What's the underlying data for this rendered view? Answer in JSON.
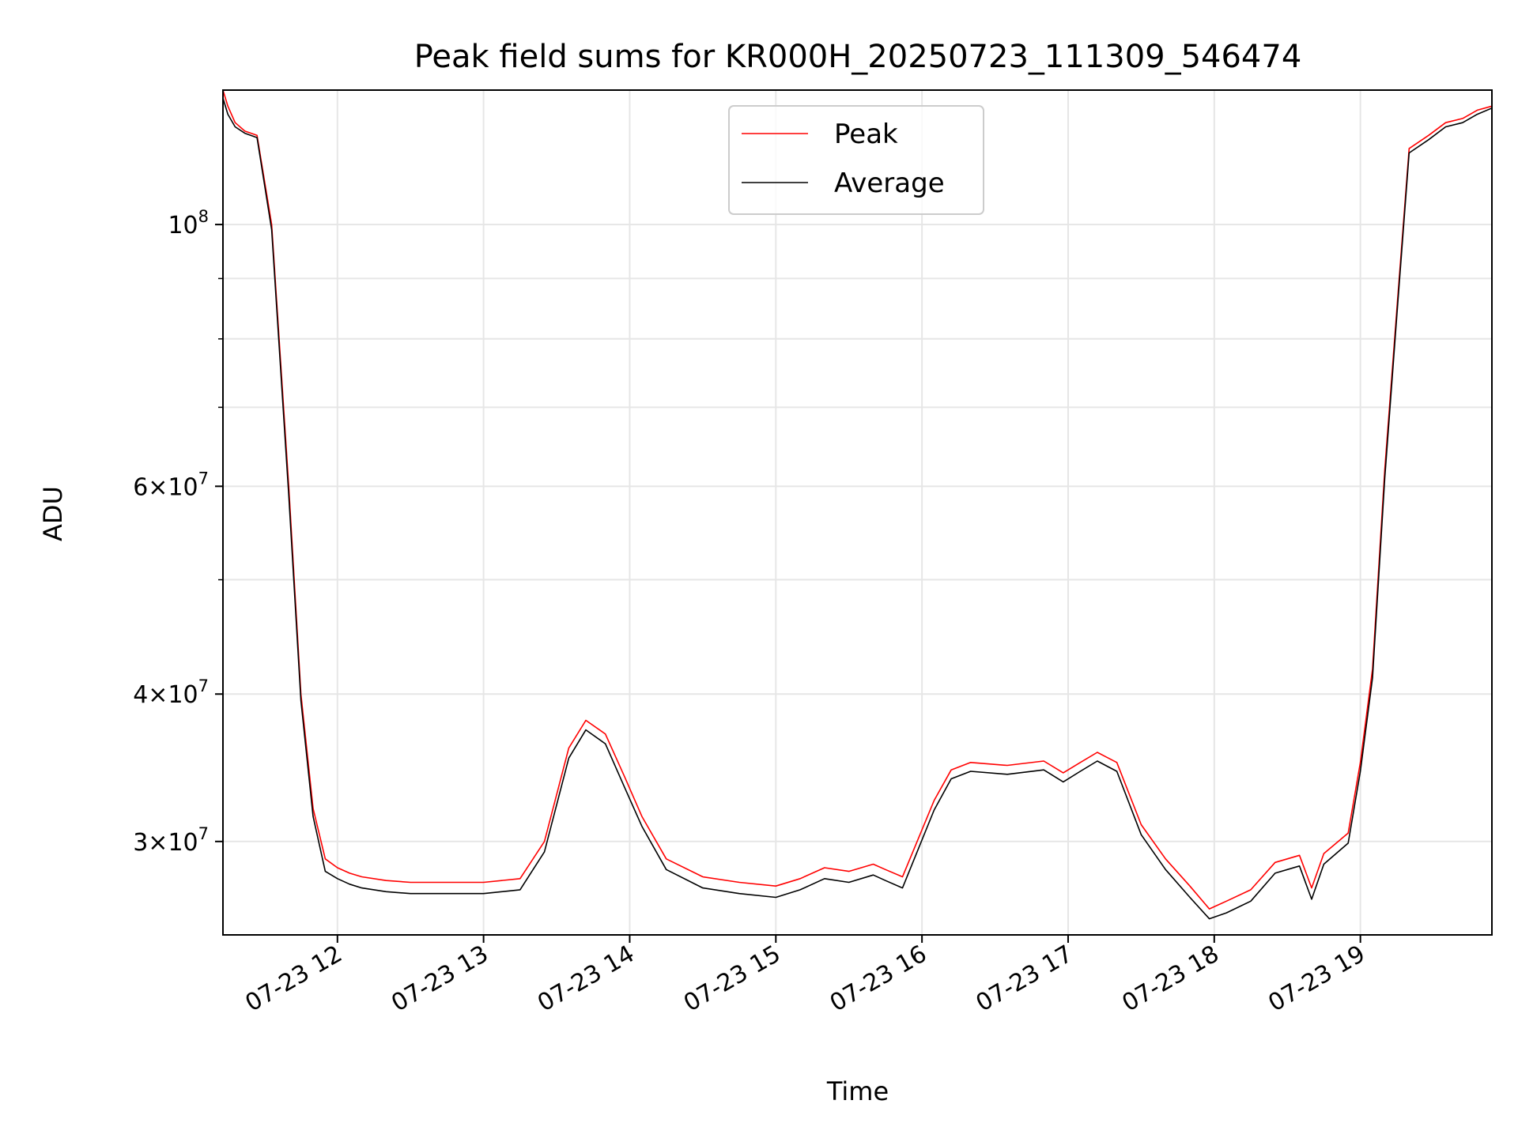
{
  "chart_data": {
    "type": "line",
    "title": "Peak field sums for KR000H_20250723_111309_546474",
    "xlabel": "Time",
    "ylabel": "ADU",
    "yscale": "log",
    "grid": true,
    "legend_position": "top-center",
    "xlim": [
      "07-23 11:13",
      "07-23 19:54"
    ],
    "ylim": [
      25000000,
      130000000
    ],
    "x_ticks": [
      "07-23 12",
      "07-23 13",
      "07-23 14",
      "07-23 15",
      "07-23 16",
      "07-23 17",
      "07-23 18",
      "07-23 19"
    ],
    "y_ticks": [
      {
        "value": 30000000,
        "coef": "3",
        "exp": "7"
      },
      {
        "value": 40000000,
        "coef": "4",
        "exp": "7"
      },
      {
        "value": 60000000,
        "coef": "6",
        "exp": "7"
      },
      {
        "value": 100000000,
        "coef": "",
        "exp": "8"
      }
    ],
    "series": [
      {
        "name": "Peak",
        "color": "#ff0000",
        "x": [
          "07-23 11:13",
          "07-23 11:15",
          "07-23 11:18",
          "07-23 11:22",
          "07-23 11:27",
          "07-23 11:33",
          "07-23 11:40",
          "07-23 11:45",
          "07-23 11:50",
          "07-23 11:55",
          "07-23 12:00",
          "07-23 12:05",
          "07-23 12:10",
          "07-23 12:20",
          "07-23 12:30",
          "07-23 12:45",
          "07-23 13:00",
          "07-23 13:15",
          "07-23 13:25",
          "07-23 13:35",
          "07-23 13:42",
          "07-23 13:50",
          "07-23 13:58",
          "07-23 14:05",
          "07-23 14:15",
          "07-23 14:30",
          "07-23 14:45",
          "07-23 15:00",
          "07-23 15:10",
          "07-23 15:20",
          "07-23 15:30",
          "07-23 15:40",
          "07-23 15:45",
          "07-23 15:52",
          "07-23 15:58",
          "07-23 16:05",
          "07-23 16:12",
          "07-23 16:20",
          "07-23 16:35",
          "07-23 16:50",
          "07-23 16:58",
          "07-23 17:05",
          "07-23 17:12",
          "07-23 17:20",
          "07-23 17:30",
          "07-23 17:40",
          "07-23 17:50",
          "07-23 17:58",
          "07-23 18:05",
          "07-23 18:15",
          "07-23 18:25",
          "07-23 18:35",
          "07-23 18:40",
          "07-23 18:45",
          "07-23 18:55",
          "07-23 19:00",
          "07-23 19:05",
          "07-23 19:10",
          "07-23 19:15",
          "07-23 19:20",
          "07-23 19:28",
          "07-23 19:35",
          "07-23 19:42",
          "07-23 19:48",
          "07-23 19:54"
        ],
        "y": [
          130000000,
          126000000,
          122000000,
          120000000,
          119000000,
          100000000,
          60000000,
          40000000,
          32000000,
          29000000,
          28500000,
          28200000,
          28000000,
          27800000,
          27700000,
          27700000,
          27700000,
          27900000,
          30000000,
          36000000,
          38000000,
          37000000,
          34000000,
          31500000,
          29000000,
          28000000,
          27700000,
          27500000,
          27900000,
          28500000,
          28300000,
          28700000,
          28400000,
          28000000,
          30000000,
          32500000,
          34500000,
          35000000,
          34800000,
          35100000,
          34300000,
          35000000,
          35700000,
          35000000,
          31000000,
          29000000,
          27500000,
          26300000,
          26700000,
          27300000,
          28800000,
          29200000,
          27400000,
          29300000,
          30500000,
          35000000,
          42000000,
          62000000,
          85000000,
          116000000,
          119000000,
          122000000,
          123000000,
          125000000,
          126000000
        ]
      },
      {
        "name": "Average",
        "color": "#000000",
        "x": [
          "07-23 11:13",
          "07-23 11:15",
          "07-23 11:18",
          "07-23 11:22",
          "07-23 11:27",
          "07-23 11:33",
          "07-23 11:40",
          "07-23 11:45",
          "07-23 11:50",
          "07-23 11:55",
          "07-23 12:00",
          "07-23 12:05",
          "07-23 12:10",
          "07-23 12:20",
          "07-23 12:30",
          "07-23 12:45",
          "07-23 13:00",
          "07-23 13:15",
          "07-23 13:25",
          "07-23 13:35",
          "07-23 13:42",
          "07-23 13:50",
          "07-23 13:58",
          "07-23 14:05",
          "07-23 14:15",
          "07-23 14:30",
          "07-23 14:45",
          "07-23 15:00",
          "07-23 15:10",
          "07-23 15:20",
          "07-23 15:30",
          "07-23 15:40",
          "07-23 15:45",
          "07-23 15:52",
          "07-23 15:58",
          "07-23 16:05",
          "07-23 16:12",
          "07-23 16:20",
          "07-23 16:35",
          "07-23 16:50",
          "07-23 16:58",
          "07-23 17:05",
          "07-23 17:12",
          "07-23 17:20",
          "07-23 17:30",
          "07-23 17:40",
          "07-23 17:50",
          "07-23 17:58",
          "07-23 18:05",
          "07-23 18:15",
          "07-23 18:25",
          "07-23 18:35",
          "07-23 18:40",
          "07-23 18:45",
          "07-23 18:55",
          "07-23 19:00",
          "07-23 19:05",
          "07-23 19:10",
          "07-23 19:15",
          "07-23 19:20",
          "07-23 19:28",
          "07-23 19:35",
          "07-23 19:42",
          "07-23 19:48",
          "07-23 19:54"
        ],
        "y": [
          128000000,
          124000000,
          121000000,
          119500000,
          118500000,
          99000000,
          59000000,
          39500000,
          31500000,
          28300000,
          27900000,
          27600000,
          27400000,
          27200000,
          27100000,
          27100000,
          27100000,
          27300000,
          29400000,
          35300000,
          37300000,
          36300000,
          33300000,
          30900000,
          28400000,
          27400000,
          27100000,
          26900000,
          27300000,
          27900000,
          27700000,
          28100000,
          27800000,
          27400000,
          29400000,
          31900000,
          33900000,
          34400000,
          34200000,
          34500000,
          33700000,
          34400000,
          35100000,
          34400000,
          30400000,
          28400000,
          26900000,
          25800000,
          26100000,
          26700000,
          28200000,
          28600000,
          26800000,
          28700000,
          29900000,
          34400000,
          41300000,
          61000000,
          84000000,
          115000000,
          118000000,
          121000000,
          122000000,
          124000000,
          125500000
        ]
      }
    ]
  }
}
